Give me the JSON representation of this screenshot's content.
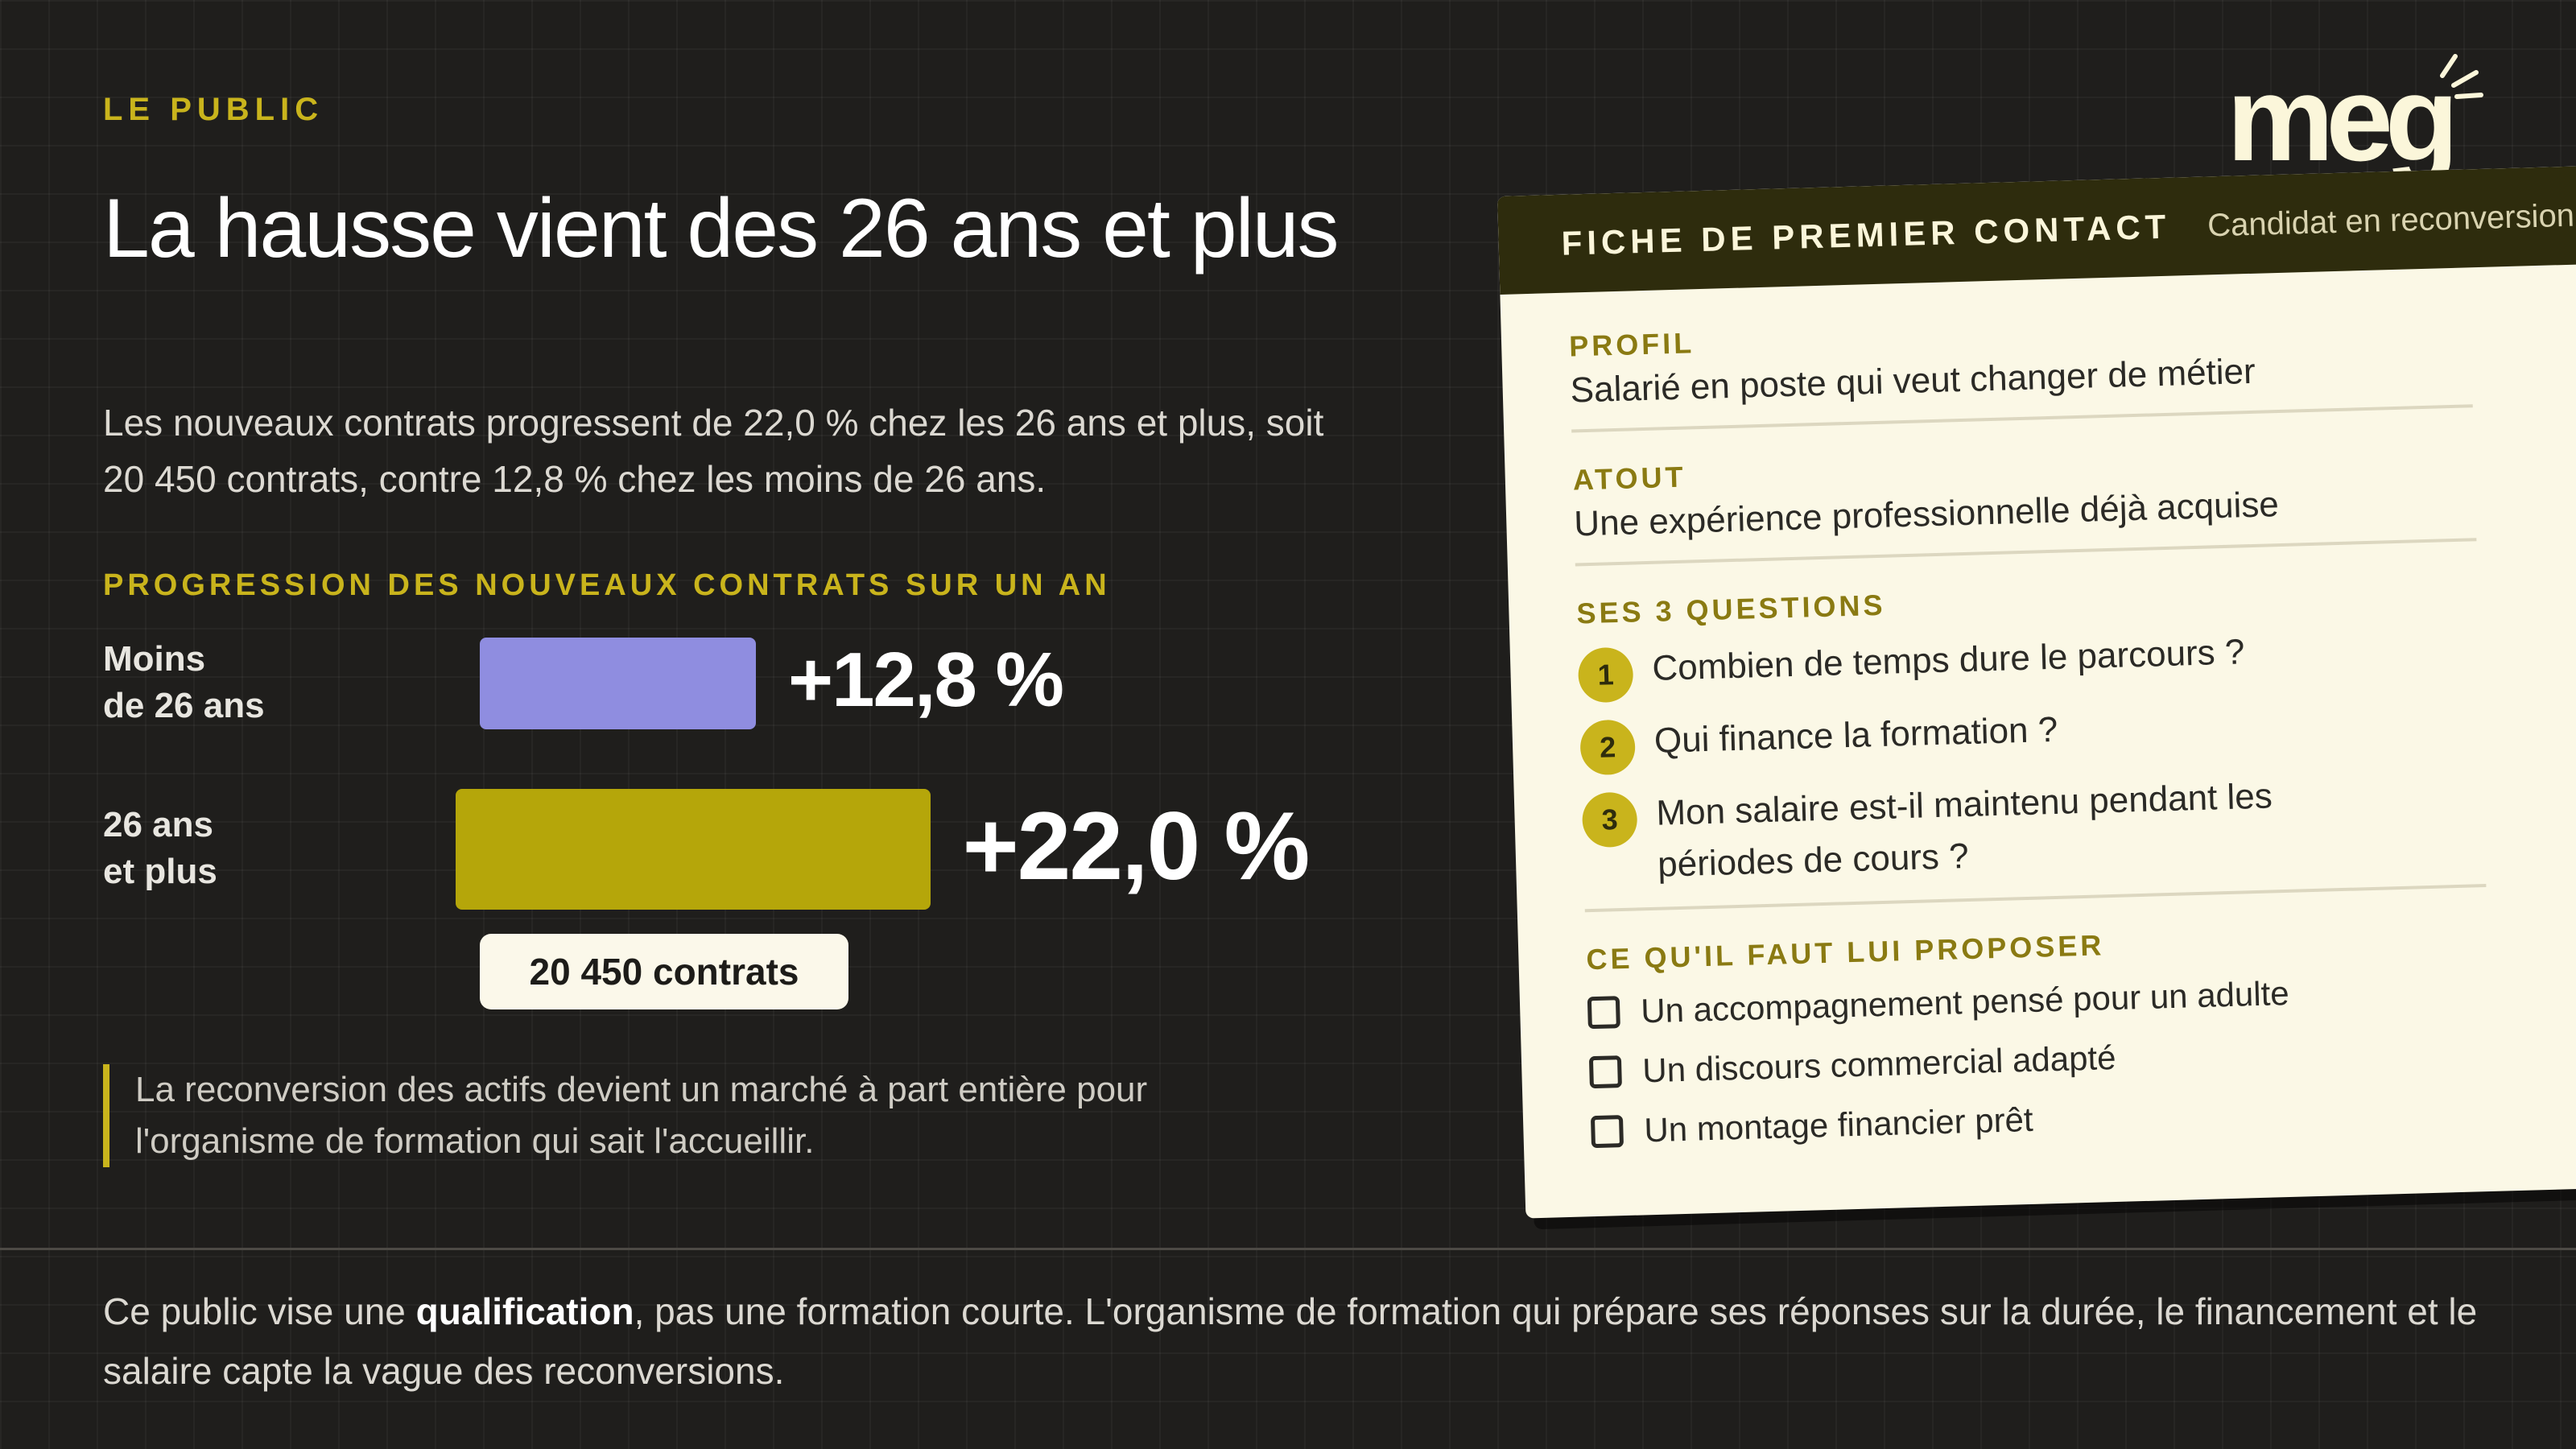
{
  "kicker": "LE PUBLIC",
  "title": "La hausse vient des 26 ans et plus",
  "subtitle": "Les nouveaux contrats progressent de 22,0 % chez les 26 ans et plus, soit 20 450 contrats, contre 12,8 % chez les moins de 26 ans.",
  "chart_data": {
    "type": "bar",
    "orientation": "horizontal",
    "title": "PROGRESSION DES NOUVEAUX CONTRATS SUR UN AN",
    "categories": [
      "Moins de 26 ans",
      "26 ans et plus"
    ],
    "category_lines": [
      [
        "Moins",
        "de 26 ans"
      ],
      [
        "26 ans",
        "et plus"
      ]
    ],
    "values": [
      12.8,
      22.0
    ],
    "value_labels": [
      "+12,8 %",
      "+22,0 %"
    ],
    "colors": [
      "#8f8de0",
      "#b5a60a"
    ],
    "annotation": "20 450 contrats",
    "unit": "%"
  },
  "quote": "La reconversion des actifs devient un marché à part entière pour l'organisme de formation qui sait l'accueillir.",
  "footer": {
    "before": "Ce public vise une ",
    "bold": "qualification",
    "after": ", pas une formation courte. L'organisme de formation qui prépare ses réponses sur la durée, le financement et le salaire capte la vague des reconversions."
  },
  "logo": "meg",
  "card": {
    "header_title": "FICHE DE PREMIER CONTACT",
    "header_sub": "Candidat en reconversion",
    "profil_label": "PROFIL",
    "profil_value": "Salarié en poste qui veut changer de métier",
    "atout_label": "ATOUT",
    "atout_value": "Une expérience professionnelle déjà acquise",
    "questions_label": "SES 3 QUESTIONS",
    "questions": [
      {
        "num": "1",
        "text": "Combien de temps dure le parcours ?"
      },
      {
        "num": "2",
        "text": "Qui finance la formation ?"
      },
      {
        "num": "3",
        "text": "Mon salaire est-il maintenu pendant les périodes de cours ?"
      }
    ],
    "propose_label": "CE QU'IL FAUT LUI PROPOSER",
    "propose": [
      "Un accompagnement pensé pour un adulte",
      "Un discours commercial adapté",
      "Un montage financier prêt"
    ]
  }
}
